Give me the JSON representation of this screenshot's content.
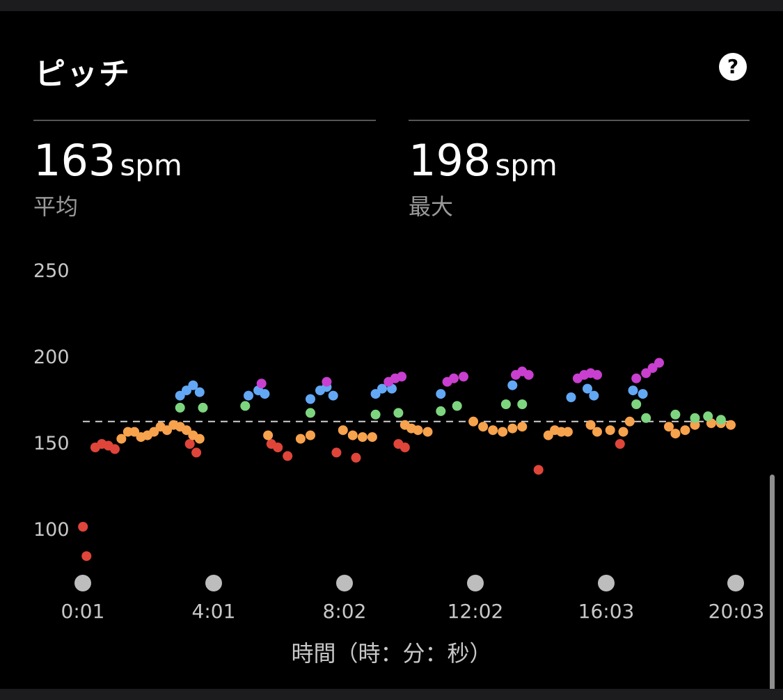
{
  "header": {
    "title": "ピッチ",
    "help_label": "?"
  },
  "stats": [
    {
      "value": "163",
      "unit": "spm",
      "label": "平均"
    },
    {
      "value": "198",
      "unit": "spm",
      "label": "最大"
    }
  ],
  "colors": {
    "red": "#e0453a",
    "orange": "#f7a24d",
    "green": "#7ed57f",
    "blue": "#63a8f5",
    "purple": "#c93fcf",
    "background": "#000000"
  },
  "chart_data": {
    "type": "scatter",
    "xlabel": "時間（時：分：秒）",
    "ylabel": "",
    "y_ticks": [
      "250",
      "200",
      "150",
      "100"
    ],
    "x_ticks": [
      "0:01",
      "4:01",
      "8:02",
      "12:02",
      "16:03",
      "20:03"
    ],
    "xlim": [
      0.0167,
      20.05
    ],
    "ylim": [
      75,
      250
    ],
    "average_line": 163,
    "legend": "none",
    "grid": false,
    "series": [
      {
        "color": "red",
        "points": [
          [
            0.02,
            102
          ],
          [
            0.13,
            85
          ],
          [
            0.4,
            148
          ],
          [
            0.6,
            150
          ],
          [
            0.8,
            149
          ],
          [
            1.0,
            147
          ],
          [
            3.3,
            150
          ],
          [
            3.5,
            145
          ],
          [
            5.8,
            150
          ],
          [
            6.0,
            148
          ],
          [
            6.3,
            143
          ],
          [
            7.8,
            145
          ],
          [
            8.4,
            142
          ],
          [
            9.7,
            150
          ],
          [
            9.9,
            148
          ],
          [
            14.0,
            135
          ],
          [
            16.5,
            150
          ]
        ]
      },
      {
        "color": "orange",
        "points": [
          [
            1.2,
            153
          ],
          [
            1.4,
            157
          ],
          [
            1.6,
            157
          ],
          [
            1.8,
            154
          ],
          [
            2.0,
            155
          ],
          [
            2.2,
            157
          ],
          [
            2.4,
            160
          ],
          [
            2.6,
            158
          ],
          [
            2.8,
            161
          ],
          [
            3.0,
            160
          ],
          [
            3.2,
            158
          ],
          [
            3.4,
            155
          ],
          [
            3.6,
            153
          ],
          [
            5.7,
            155
          ],
          [
            6.7,
            153
          ],
          [
            7.0,
            155
          ],
          [
            8.0,
            158
          ],
          [
            8.3,
            155
          ],
          [
            8.6,
            154
          ],
          [
            8.9,
            154
          ],
          [
            9.9,
            161
          ],
          [
            10.1,
            159
          ],
          [
            10.3,
            158
          ],
          [
            10.6,
            157
          ],
          [
            12.0,
            163
          ],
          [
            12.3,
            160
          ],
          [
            12.6,
            158
          ],
          [
            12.9,
            157
          ],
          [
            13.2,
            159
          ],
          [
            13.5,
            160
          ],
          [
            14.3,
            155
          ],
          [
            14.5,
            158
          ],
          [
            14.7,
            157
          ],
          [
            14.9,
            157
          ],
          [
            15.6,
            161
          ],
          [
            15.8,
            157
          ],
          [
            16.2,
            158
          ],
          [
            16.6,
            157
          ],
          [
            16.8,
            163
          ],
          [
            18.0,
            160
          ],
          [
            18.2,
            156
          ],
          [
            18.5,
            158
          ],
          [
            18.8,
            161
          ],
          [
            19.3,
            162
          ],
          [
            19.6,
            162
          ],
          [
            19.9,
            161
          ]
        ]
      },
      {
        "color": "green",
        "points": [
          [
            3.0,
            171
          ],
          [
            3.7,
            171
          ],
          [
            5.0,
            172
          ],
          [
            7.0,
            168
          ],
          [
            9.0,
            167
          ],
          [
            9.7,
            168
          ],
          [
            11.0,
            169
          ],
          [
            11.5,
            172
          ],
          [
            13.0,
            173
          ],
          [
            13.5,
            173
          ],
          [
            17.0,
            173
          ],
          [
            17.3,
            165
          ],
          [
            18.2,
            167
          ],
          [
            18.8,
            165
          ],
          [
            19.2,
            166
          ],
          [
            19.6,
            164
          ]
        ]
      },
      {
        "color": "blue",
        "points": [
          [
            3.0,
            178
          ],
          [
            3.2,
            181
          ],
          [
            3.4,
            184
          ],
          [
            3.6,
            180
          ],
          [
            5.1,
            178
          ],
          [
            5.4,
            181
          ],
          [
            5.6,
            179
          ],
          [
            7.0,
            176
          ],
          [
            7.3,
            181
          ],
          [
            7.5,
            183
          ],
          [
            7.7,
            178
          ],
          [
            9.0,
            179
          ],
          [
            9.2,
            182
          ],
          [
            9.5,
            182
          ],
          [
            11.0,
            179
          ],
          [
            13.2,
            184
          ],
          [
            15.0,
            177
          ],
          [
            15.5,
            182
          ],
          [
            15.7,
            178
          ],
          [
            16.9,
            181
          ],
          [
            17.2,
            179
          ]
        ]
      },
      {
        "color": "purple",
        "points": [
          [
            5.5,
            185
          ],
          [
            7.5,
            186
          ],
          [
            9.4,
            186
          ],
          [
            9.6,
            188
          ],
          [
            9.8,
            189
          ],
          [
            11.2,
            186
          ],
          [
            11.4,
            188
          ],
          [
            11.7,
            189
          ],
          [
            13.3,
            190
          ],
          [
            13.5,
            192
          ],
          [
            13.7,
            190
          ],
          [
            15.2,
            188
          ],
          [
            15.4,
            190
          ],
          [
            15.6,
            191
          ],
          [
            15.8,
            190
          ],
          [
            17.0,
            188
          ],
          [
            17.3,
            191
          ],
          [
            17.5,
            194
          ],
          [
            17.7,
            197
          ]
        ]
      }
    ]
  }
}
